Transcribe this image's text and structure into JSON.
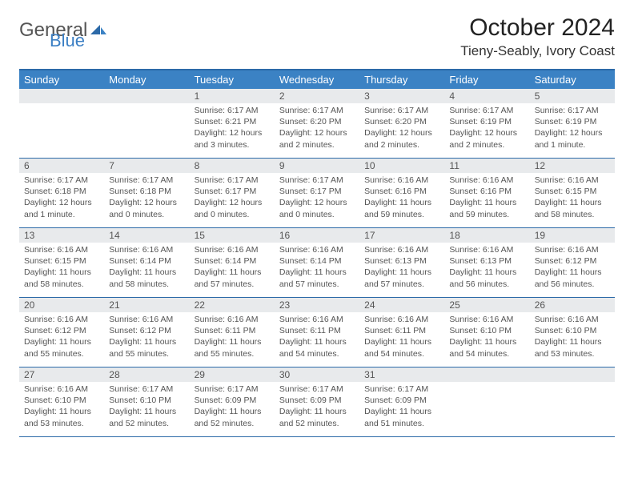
{
  "logo": {
    "text_gray": "General",
    "text_blue": "Blue"
  },
  "title": "October 2024",
  "location": "Tieny-Seably, Ivory Coast",
  "colors": {
    "header_bg": "#3b82c4",
    "header_text": "#ffffff",
    "border": "#2c6aa8",
    "daynum_bg": "#e8eaec",
    "body_text": "#555555"
  },
  "weekdays": [
    "Sunday",
    "Monday",
    "Tuesday",
    "Wednesday",
    "Thursday",
    "Friday",
    "Saturday"
  ],
  "weeks": [
    [
      {
        "num": "",
        "lines": []
      },
      {
        "num": "",
        "lines": []
      },
      {
        "num": "1",
        "lines": [
          "Sunrise: 6:17 AM",
          "Sunset: 6:21 PM",
          "Daylight: 12 hours and 3 minutes."
        ]
      },
      {
        "num": "2",
        "lines": [
          "Sunrise: 6:17 AM",
          "Sunset: 6:20 PM",
          "Daylight: 12 hours and 2 minutes."
        ]
      },
      {
        "num": "3",
        "lines": [
          "Sunrise: 6:17 AM",
          "Sunset: 6:20 PM",
          "Daylight: 12 hours and 2 minutes."
        ]
      },
      {
        "num": "4",
        "lines": [
          "Sunrise: 6:17 AM",
          "Sunset: 6:19 PM",
          "Daylight: 12 hours and 2 minutes."
        ]
      },
      {
        "num": "5",
        "lines": [
          "Sunrise: 6:17 AM",
          "Sunset: 6:19 PM",
          "Daylight: 12 hours and 1 minute."
        ]
      }
    ],
    [
      {
        "num": "6",
        "lines": [
          "Sunrise: 6:17 AM",
          "Sunset: 6:18 PM",
          "Daylight: 12 hours and 1 minute."
        ]
      },
      {
        "num": "7",
        "lines": [
          "Sunrise: 6:17 AM",
          "Sunset: 6:18 PM",
          "Daylight: 12 hours and 0 minutes."
        ]
      },
      {
        "num": "8",
        "lines": [
          "Sunrise: 6:17 AM",
          "Sunset: 6:17 PM",
          "Daylight: 12 hours and 0 minutes."
        ]
      },
      {
        "num": "9",
        "lines": [
          "Sunrise: 6:17 AM",
          "Sunset: 6:17 PM",
          "Daylight: 12 hours and 0 minutes."
        ]
      },
      {
        "num": "10",
        "lines": [
          "Sunrise: 6:16 AM",
          "Sunset: 6:16 PM",
          "Daylight: 11 hours and 59 minutes."
        ]
      },
      {
        "num": "11",
        "lines": [
          "Sunrise: 6:16 AM",
          "Sunset: 6:16 PM",
          "Daylight: 11 hours and 59 minutes."
        ]
      },
      {
        "num": "12",
        "lines": [
          "Sunrise: 6:16 AM",
          "Sunset: 6:15 PM",
          "Daylight: 11 hours and 58 minutes."
        ]
      }
    ],
    [
      {
        "num": "13",
        "lines": [
          "Sunrise: 6:16 AM",
          "Sunset: 6:15 PM",
          "Daylight: 11 hours and 58 minutes."
        ]
      },
      {
        "num": "14",
        "lines": [
          "Sunrise: 6:16 AM",
          "Sunset: 6:14 PM",
          "Daylight: 11 hours and 58 minutes."
        ]
      },
      {
        "num": "15",
        "lines": [
          "Sunrise: 6:16 AM",
          "Sunset: 6:14 PM",
          "Daylight: 11 hours and 57 minutes."
        ]
      },
      {
        "num": "16",
        "lines": [
          "Sunrise: 6:16 AM",
          "Sunset: 6:14 PM",
          "Daylight: 11 hours and 57 minutes."
        ]
      },
      {
        "num": "17",
        "lines": [
          "Sunrise: 6:16 AM",
          "Sunset: 6:13 PM",
          "Daylight: 11 hours and 57 minutes."
        ]
      },
      {
        "num": "18",
        "lines": [
          "Sunrise: 6:16 AM",
          "Sunset: 6:13 PM",
          "Daylight: 11 hours and 56 minutes."
        ]
      },
      {
        "num": "19",
        "lines": [
          "Sunrise: 6:16 AM",
          "Sunset: 6:12 PM",
          "Daylight: 11 hours and 56 minutes."
        ]
      }
    ],
    [
      {
        "num": "20",
        "lines": [
          "Sunrise: 6:16 AM",
          "Sunset: 6:12 PM",
          "Daylight: 11 hours and 55 minutes."
        ]
      },
      {
        "num": "21",
        "lines": [
          "Sunrise: 6:16 AM",
          "Sunset: 6:12 PM",
          "Daylight: 11 hours and 55 minutes."
        ]
      },
      {
        "num": "22",
        "lines": [
          "Sunrise: 6:16 AM",
          "Sunset: 6:11 PM",
          "Daylight: 11 hours and 55 minutes."
        ]
      },
      {
        "num": "23",
        "lines": [
          "Sunrise: 6:16 AM",
          "Sunset: 6:11 PM",
          "Daylight: 11 hours and 54 minutes."
        ]
      },
      {
        "num": "24",
        "lines": [
          "Sunrise: 6:16 AM",
          "Sunset: 6:11 PM",
          "Daylight: 11 hours and 54 minutes."
        ]
      },
      {
        "num": "25",
        "lines": [
          "Sunrise: 6:16 AM",
          "Sunset: 6:10 PM",
          "Daylight: 11 hours and 54 minutes."
        ]
      },
      {
        "num": "26",
        "lines": [
          "Sunrise: 6:16 AM",
          "Sunset: 6:10 PM",
          "Daylight: 11 hours and 53 minutes."
        ]
      }
    ],
    [
      {
        "num": "27",
        "lines": [
          "Sunrise: 6:16 AM",
          "Sunset: 6:10 PM",
          "Daylight: 11 hours and 53 minutes."
        ]
      },
      {
        "num": "28",
        "lines": [
          "Sunrise: 6:17 AM",
          "Sunset: 6:10 PM",
          "Daylight: 11 hours and 52 minutes."
        ]
      },
      {
        "num": "29",
        "lines": [
          "Sunrise: 6:17 AM",
          "Sunset: 6:09 PM",
          "Daylight: 11 hours and 52 minutes."
        ]
      },
      {
        "num": "30",
        "lines": [
          "Sunrise: 6:17 AM",
          "Sunset: 6:09 PM",
          "Daylight: 11 hours and 52 minutes."
        ]
      },
      {
        "num": "31",
        "lines": [
          "Sunrise: 6:17 AM",
          "Sunset: 6:09 PM",
          "Daylight: 11 hours and 51 minutes."
        ]
      },
      {
        "num": "",
        "lines": []
      },
      {
        "num": "",
        "lines": []
      }
    ]
  ]
}
